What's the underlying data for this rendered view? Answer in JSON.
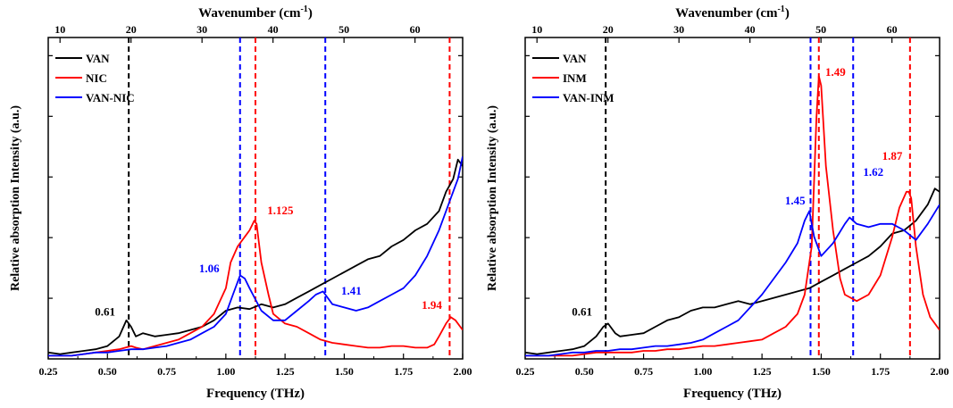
{
  "chart_data": [
    {
      "type": "line",
      "xlabel": "Frequency (THz)",
      "xlabel_top": "Wavenumber (cm",
      "xlabel_top_sup": "-1",
      "xlabel_top_tail": ")",
      "ylabel": "Relative absorption Intensity (a.u.)",
      "xlim": [
        0.25,
        2.0
      ],
      "ylim": [
        0,
        1
      ],
      "xticks": [
        0.25,
        0.5,
        0.75,
        1.0,
        1.25,
        1.5,
        1.75,
        2.0
      ],
      "xtick_labels": [
        "0.25",
        "0.50",
        "0.75",
        "1.00",
        "1.25",
        "1.50",
        "1.75",
        "2.00"
      ],
      "top_ticks": [
        10,
        20,
        30,
        40,
        50,
        60
      ],
      "top_tick_labels": [
        "10",
        "20",
        "30",
        "40",
        "50",
        "60"
      ],
      "legend_position": "top-left",
      "series": [
        {
          "name": "VAN",
          "color": "#000000",
          "x": [
            0.25,
            0.3,
            0.35,
            0.4,
            0.45,
            0.5,
            0.55,
            0.58,
            0.6,
            0.62,
            0.65,
            0.7,
            0.75,
            0.8,
            0.85,
            0.9,
            0.95,
            1.0,
            1.05,
            1.1,
            1.15,
            1.2,
            1.25,
            1.3,
            1.35,
            1.4,
            1.45,
            1.5,
            1.55,
            1.6,
            1.65,
            1.7,
            1.75,
            1.8,
            1.85,
            1.9,
            1.93,
            1.96,
            1.98,
            2.0
          ],
          "y": [
            0.02,
            0.015,
            0.02,
            0.025,
            0.03,
            0.04,
            0.07,
            0.12,
            0.1,
            0.07,
            0.08,
            0.07,
            0.075,
            0.08,
            0.09,
            0.1,
            0.12,
            0.15,
            0.16,
            0.155,
            0.17,
            0.16,
            0.17,
            0.19,
            0.21,
            0.23,
            0.25,
            0.27,
            0.29,
            0.31,
            0.32,
            0.35,
            0.37,
            0.4,
            0.42,
            0.46,
            0.52,
            0.56,
            0.62,
            0.6
          ]
        },
        {
          "name": "NIC",
          "color": "#ff0000",
          "x": [
            0.25,
            0.3,
            0.35,
            0.4,
            0.45,
            0.5,
            0.55,
            0.6,
            0.62,
            0.65,
            0.7,
            0.75,
            0.8,
            0.85,
            0.9,
            0.95,
            1.0,
            1.02,
            1.05,
            1.08,
            1.1,
            1.12,
            1.13,
            1.15,
            1.18,
            1.2,
            1.25,
            1.3,
            1.35,
            1.4,
            1.45,
            1.5,
            1.55,
            1.6,
            1.65,
            1.7,
            1.75,
            1.8,
            1.85,
            1.88,
            1.9,
            1.93,
            1.95,
            1.97,
            2.0
          ],
          "y": [
            0.01,
            0.01,
            0.01,
            0.015,
            0.02,
            0.025,
            0.03,
            0.04,
            0.035,
            0.03,
            0.04,
            0.05,
            0.06,
            0.08,
            0.1,
            0.14,
            0.22,
            0.3,
            0.35,
            0.38,
            0.4,
            0.43,
            0.42,
            0.3,
            0.2,
            0.14,
            0.11,
            0.1,
            0.08,
            0.06,
            0.05,
            0.045,
            0.04,
            0.035,
            0.035,
            0.04,
            0.04,
            0.035,
            0.035,
            0.045,
            0.07,
            0.11,
            0.13,
            0.12,
            0.09
          ]
        },
        {
          "name": "VAN-NIC",
          "color": "#0000ff",
          "x": [
            0.25,
            0.3,
            0.35,
            0.4,
            0.45,
            0.5,
            0.55,
            0.6,
            0.65,
            0.7,
            0.75,
            0.8,
            0.85,
            0.9,
            0.95,
            1.0,
            1.03,
            1.06,
            1.08,
            1.1,
            1.15,
            1.2,
            1.25,
            1.3,
            1.35,
            1.38,
            1.41,
            1.45,
            1.5,
            1.55,
            1.6,
            1.65,
            1.7,
            1.75,
            1.8,
            1.85,
            1.9,
            1.95,
            1.98,
            2.0
          ],
          "y": [
            0.01,
            0.01,
            0.01,
            0.015,
            0.02,
            0.02,
            0.025,
            0.03,
            0.03,
            0.035,
            0.04,
            0.05,
            0.06,
            0.08,
            0.1,
            0.14,
            0.2,
            0.26,
            0.25,
            0.22,
            0.15,
            0.12,
            0.12,
            0.15,
            0.18,
            0.2,
            0.21,
            0.17,
            0.16,
            0.15,
            0.16,
            0.18,
            0.2,
            0.22,
            0.26,
            0.32,
            0.4,
            0.5,
            0.56,
            0.63
          ]
        }
      ],
      "vlines": [
        {
          "x": 0.59,
          "color": "#000000"
        },
        {
          "x": 1.06,
          "color": "#0000ff"
        },
        {
          "x": 1.125,
          "color": "#ff0000"
        },
        {
          "x": 1.42,
          "color": "#0000ff"
        },
        {
          "x": 1.945,
          "color": "#ff0000"
        }
      ],
      "annotations": [
        {
          "text": "0.61",
          "x": 0.49,
          "y": 0.135,
          "color": "#000000"
        },
        {
          "text": "1.06",
          "x": 0.93,
          "y": 0.27,
          "color": "#0000ff"
        },
        {
          "text": "1.125",
          "x": 1.23,
          "y": 0.45,
          "color": "#ff0000"
        },
        {
          "text": "1.41",
          "x": 1.53,
          "y": 0.2,
          "color": "#0000ff"
        },
        {
          "text": "1.94",
          "x": 1.87,
          "y": 0.155,
          "color": "#ff0000"
        }
      ]
    },
    {
      "type": "line",
      "xlabel": "Frequency (THz)",
      "xlabel_top": "Wavenumber (cm",
      "xlabel_top_sup": "-1",
      "xlabel_top_tail": ")",
      "ylabel": "Relative absorption Intensity (a.u.)",
      "xlim": [
        0.25,
        2.0
      ],
      "ylim": [
        0,
        1
      ],
      "xticks": [
        0.25,
        0.5,
        0.75,
        1.0,
        1.25,
        1.5,
        1.75,
        2.0
      ],
      "xtick_labels": [
        "0.25",
        "0.50",
        "0.75",
        "1.00",
        "1.25",
        "1.50",
        "1.75",
        "2.00"
      ],
      "top_ticks": [
        10,
        20,
        30,
        40,
        50,
        60
      ],
      "top_tick_labels": [
        "10",
        "20",
        "30",
        "40",
        "50",
        "60"
      ],
      "legend_position": "top-left",
      "series": [
        {
          "name": "VAN",
          "color": "#000000",
          "x": [
            0.25,
            0.3,
            0.35,
            0.4,
            0.45,
            0.5,
            0.55,
            0.58,
            0.6,
            0.63,
            0.65,
            0.7,
            0.75,
            0.8,
            0.85,
            0.9,
            0.95,
            1.0,
            1.05,
            1.1,
            1.15,
            1.2,
            1.25,
            1.3,
            1.35,
            1.4,
            1.45,
            1.5,
            1.55,
            1.6,
            1.65,
            1.7,
            1.75,
            1.8,
            1.85,
            1.9,
            1.95,
            1.98,
            2.0
          ],
          "y": [
            0.02,
            0.015,
            0.02,
            0.025,
            0.03,
            0.04,
            0.07,
            0.1,
            0.11,
            0.08,
            0.07,
            0.075,
            0.08,
            0.1,
            0.12,
            0.13,
            0.15,
            0.16,
            0.16,
            0.17,
            0.18,
            0.17,
            0.18,
            0.19,
            0.2,
            0.21,
            0.22,
            0.24,
            0.26,
            0.28,
            0.3,
            0.32,
            0.35,
            0.39,
            0.4,
            0.43,
            0.48,
            0.53,
            0.52
          ]
        },
        {
          "name": "INM",
          "color": "#ff0000",
          "x": [
            0.25,
            0.3,
            0.35,
            0.4,
            0.45,
            0.5,
            0.55,
            0.6,
            0.65,
            0.7,
            0.75,
            0.8,
            0.85,
            0.9,
            0.95,
            1.0,
            1.05,
            1.1,
            1.15,
            1.2,
            1.25,
            1.3,
            1.35,
            1.4,
            1.43,
            1.46,
            1.48,
            1.49,
            1.5,
            1.52,
            1.55,
            1.58,
            1.6,
            1.65,
            1.7,
            1.75,
            1.8,
            1.83,
            1.86,
            1.87,
            1.88,
            1.9,
            1.93,
            1.96,
            2.0
          ],
          "y": [
            0.01,
            0.01,
            0.01,
            0.01,
            0.01,
            0.015,
            0.02,
            0.02,
            0.02,
            0.02,
            0.025,
            0.025,
            0.03,
            0.03,
            0.035,
            0.04,
            0.04,
            0.045,
            0.05,
            0.055,
            0.06,
            0.08,
            0.1,
            0.14,
            0.2,
            0.35,
            0.75,
            0.88,
            0.85,
            0.6,
            0.4,
            0.25,
            0.2,
            0.18,
            0.2,
            0.26,
            0.38,
            0.47,
            0.52,
            0.52,
            0.5,
            0.35,
            0.2,
            0.13,
            0.09
          ]
        },
        {
          "name": "VAN-INM",
          "color": "#0000ff",
          "x": [
            0.25,
            0.3,
            0.35,
            0.4,
            0.45,
            0.5,
            0.55,
            0.6,
            0.65,
            0.7,
            0.75,
            0.8,
            0.85,
            0.9,
            0.95,
            1.0,
            1.05,
            1.1,
            1.15,
            1.2,
            1.25,
            1.3,
            1.35,
            1.4,
            1.43,
            1.45,
            1.47,
            1.5,
            1.55,
            1.6,
            1.62,
            1.65,
            1.7,
            1.75,
            1.8,
            1.85,
            1.9,
            1.95,
            2.0
          ],
          "y": [
            0.01,
            0.01,
            0.01,
            0.015,
            0.02,
            0.02,
            0.025,
            0.025,
            0.03,
            0.03,
            0.035,
            0.04,
            0.04,
            0.045,
            0.05,
            0.06,
            0.08,
            0.1,
            0.12,
            0.16,
            0.2,
            0.25,
            0.3,
            0.36,
            0.43,
            0.46,
            0.38,
            0.32,
            0.36,
            0.42,
            0.44,
            0.42,
            0.41,
            0.42,
            0.42,
            0.4,
            0.37,
            0.42,
            0.48
          ]
        }
      ],
      "vlines": [
        {
          "x": 0.59,
          "color": "#000000"
        },
        {
          "x": 1.455,
          "color": "#0000ff"
        },
        {
          "x": 1.49,
          "color": "#ff0000"
        },
        {
          "x": 1.635,
          "color": "#0000ff"
        },
        {
          "x": 1.875,
          "color": "#ff0000"
        }
      ],
      "annotations": [
        {
          "text": "0.61",
          "x": 0.49,
          "y": 0.135,
          "color": "#000000"
        },
        {
          "text": "1.45",
          "x": 1.39,
          "y": 0.48,
          "color": "#0000ff"
        },
        {
          "text": "1.49",
          "x": 1.56,
          "y": 0.88,
          "color": "#ff0000"
        },
        {
          "text": "1.62",
          "x": 1.72,
          "y": 0.57,
          "color": "#0000ff"
        },
        {
          "text": "1.87",
          "x": 1.8,
          "y": 0.62,
          "color": "#ff0000"
        }
      ]
    }
  ]
}
